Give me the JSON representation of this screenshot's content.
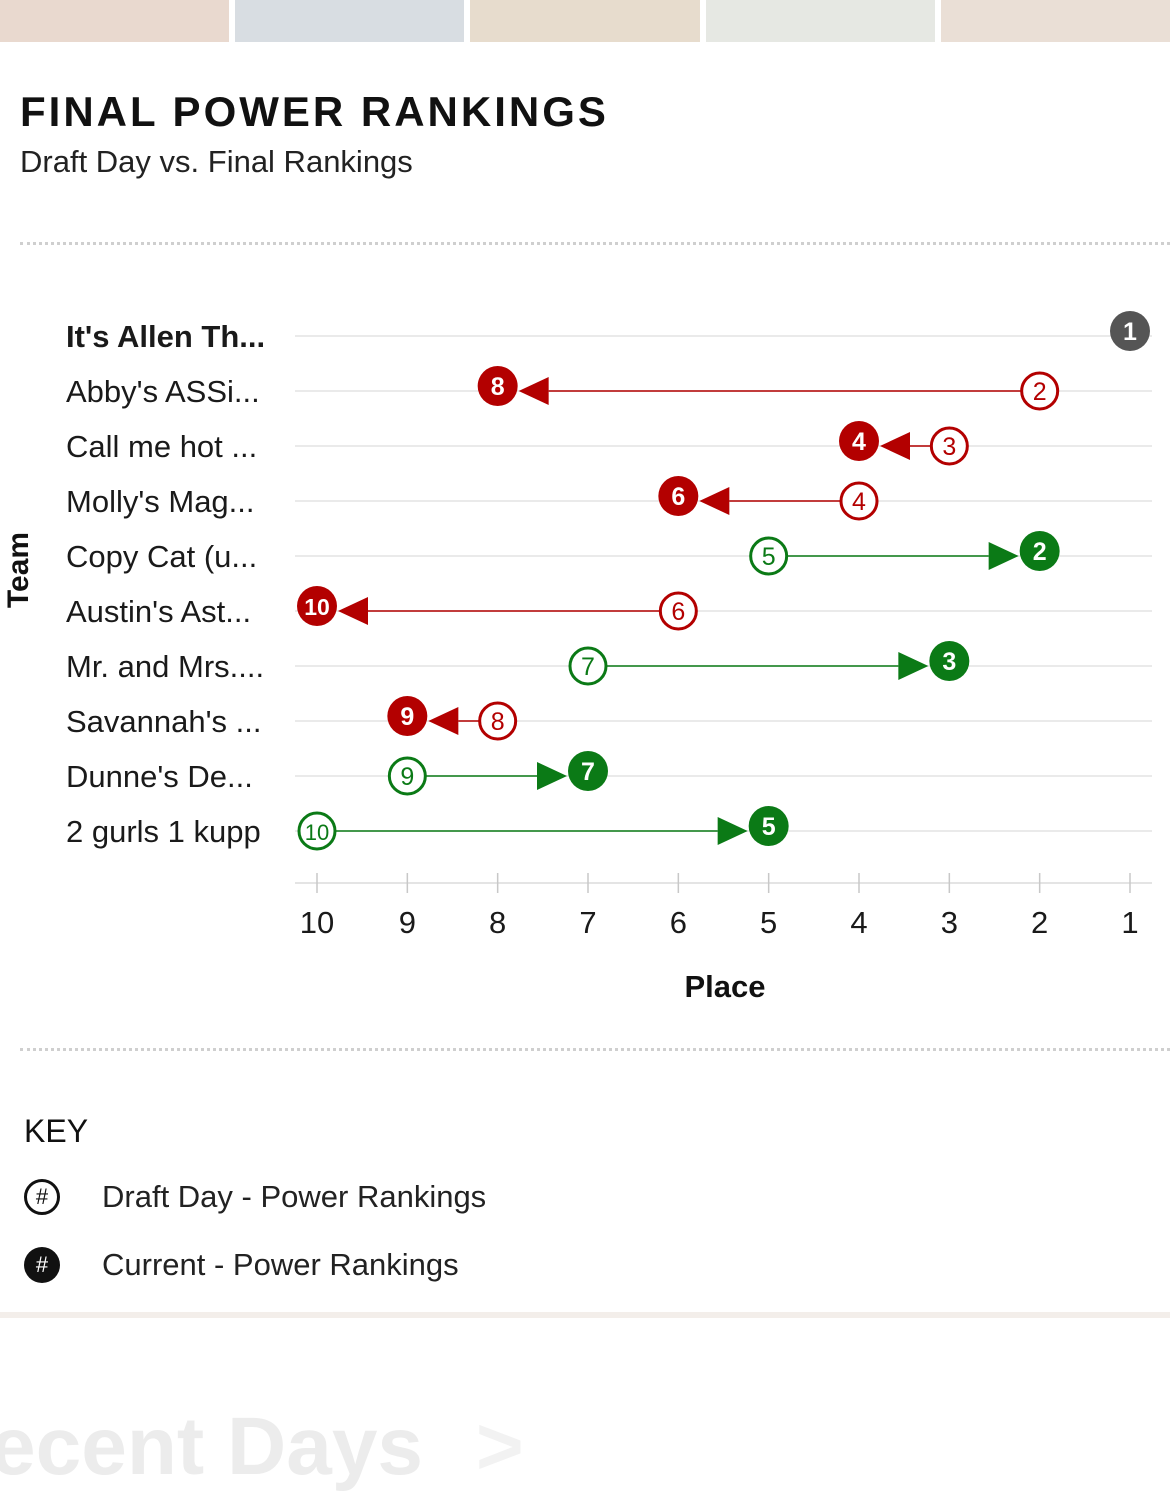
{
  "header": {
    "title": "FINAL POWER RANKINGS",
    "subtitle": "Draft Day vs. Final Rankings"
  },
  "colors": {
    "improve": "#0b7a16",
    "decline": "#b30000",
    "same": "#555555",
    "grid": "#e3e3e3"
  },
  "chart_data": {
    "type": "dumbbell",
    "ylabel": "Team",
    "xlabel": "Place",
    "x_ticks": [
      10,
      9,
      8,
      7,
      6,
      5,
      4,
      3,
      2,
      1
    ],
    "x_range": [
      10,
      1
    ],
    "teams": [
      {
        "name": "It's Allen Th...",
        "draft": 1,
        "final": 1
      },
      {
        "name": "Abby's ASSi...",
        "draft": 2,
        "final": 8
      },
      {
        "name": "Call me hot ...",
        "draft": 3,
        "final": 4
      },
      {
        "name": "Molly's Mag...",
        "draft": 4,
        "final": 6
      },
      {
        "name": "Copy Cat (u...",
        "draft": 5,
        "final": 2
      },
      {
        "name": "Austin's Ast...",
        "draft": 6,
        "final": 10
      },
      {
        "name": "Mr. and Mrs....",
        "draft": 7,
        "final": 3
      },
      {
        "name": "Savannah's ...",
        "draft": 8,
        "final": 9
      },
      {
        "name": "Dunne's De...",
        "draft": 9,
        "final": 7
      },
      {
        "name": "2 gurls 1 kupp",
        "draft": 10,
        "final": 5
      }
    ]
  },
  "key": {
    "title": "KEY",
    "draft_symbol": "#",
    "draft_label": "Draft Day - Power Rankings",
    "current_symbol": "#",
    "current_label": "Current - Power Rankings"
  },
  "footer": {
    "heading": "ecent Days",
    "chevron": ">"
  }
}
